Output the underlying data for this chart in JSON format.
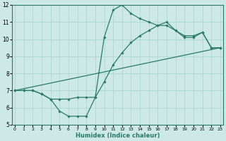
{
  "bg_color": "#cce9e5",
  "line_color": "#2a7a68",
  "grid_color": "#aad4ce",
  "xlabel": "Humidex (Indice chaleur)",
  "xlim": [
    0,
    23
  ],
  "ylim": [
    5,
    12
  ],
  "xticks": [
    0,
    1,
    2,
    3,
    4,
    5,
    6,
    7,
    8,
    9,
    10,
    11,
    12,
    13,
    14,
    15,
    16,
    17,
    18,
    19,
    20,
    21,
    22,
    23
  ],
  "yticks": [
    5,
    6,
    7,
    8,
    9,
    10,
    11,
    12
  ],
  "series": [
    {
      "x": [
        0,
        1,
        2,
        3,
        4,
        5,
        6,
        7,
        8,
        9,
        10,
        11,
        12,
        13,
        14,
        15,
        16,
        17,
        18,
        19,
        20,
        21,
        22,
        23
      ],
      "y": [
        7.0,
        7.0,
        7.0,
        6.8,
        6.5,
        5.8,
        5.5,
        5.5,
        5.5,
        6.6,
        10.1,
        11.7,
        12.0,
        11.5,
        11.2,
        11.0,
        10.8,
        10.8,
        10.5,
        10.1,
        10.1,
        10.4,
        9.5,
        9.5
      ],
      "marker": true,
      "lw": 0.9
    },
    {
      "x": [
        0,
        1,
        2,
        3,
        4,
        5,
        6,
        7,
        8,
        9,
        10,
        11,
        12,
        13,
        14,
        15,
        16,
        17,
        18,
        19,
        20,
        21,
        22,
        23
      ],
      "y": [
        7.0,
        7.0,
        7.0,
        6.8,
        6.5,
        6.5,
        6.5,
        6.6,
        6.6,
        6.6,
        7.5,
        8.5,
        9.2,
        9.8,
        10.2,
        10.5,
        10.8,
        11.0,
        10.5,
        10.2,
        10.2,
        10.4,
        9.5,
        9.5
      ],
      "marker": true,
      "lw": 0.9
    },
    {
      "x": [
        0,
        23
      ],
      "y": [
        7.0,
        9.5
      ],
      "marker": false,
      "lw": 0.9
    }
  ]
}
